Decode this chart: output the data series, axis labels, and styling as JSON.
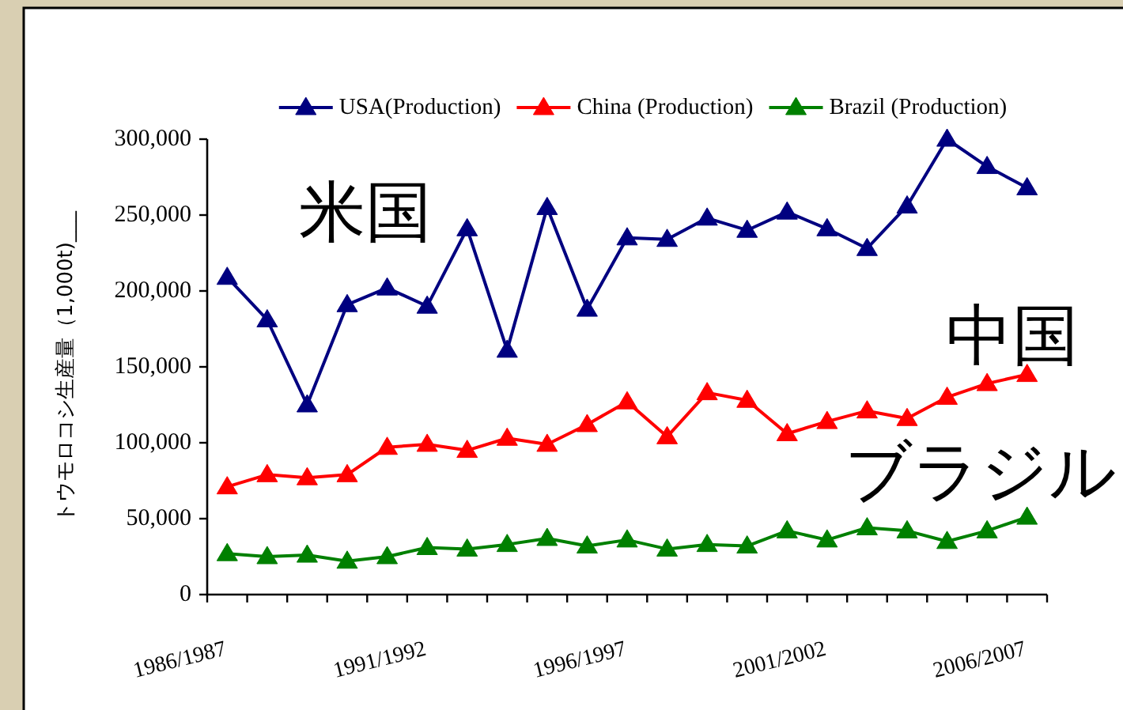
{
  "chart_data": {
    "type": "line",
    "ylabel": "トウモロコシ生産量（1,000t)___",
    "categories": [
      "1986/1987",
      null,
      null,
      null,
      null,
      "1991/1992",
      null,
      null,
      null,
      null,
      "1996/1997",
      null,
      null,
      null,
      null,
      "2001/2002",
      null,
      null,
      null,
      null,
      "2006/2007"
    ],
    "series": [
      {
        "name": "USA(Production)",
        "color": "#000080",
        "values": [
          209000,
          181000,
          125000,
          191000,
          202000,
          190000,
          241000,
          161000,
          255000,
          188000,
          235000,
          234000,
          248000,
          240000,
          252000,
          241000,
          228000,
          256000,
          300000,
          282000,
          268000
        ]
      },
      {
        "name": "China (Production)",
        "color": "#ff0000",
        "values": [
          71000,
          79000,
          77000,
          79000,
          97000,
          99000,
          95000,
          103000,
          99000,
          112000,
          127000,
          104000,
          133000,
          128000,
          106000,
          114000,
          121000,
          116000,
          130000,
          139000,
          145000
        ]
      },
      {
        "name": "Brazil (Production)",
        "color": "#008000",
        "values": [
          27000,
          25000,
          26000,
          22000,
          25000,
          31000,
          30000,
          33000,
          37000,
          32000,
          36000,
          30000,
          33000,
          32000,
          42000,
          36000,
          44000,
          42000,
          35000,
          42000,
          51000
        ]
      }
    ],
    "ylim": [
      0,
      300000
    ],
    "yticks": [
      0,
      {
        "value": 50000,
        "label": "50,000"
      },
      {
        "value": 100000,
        "label": "100,000"
      },
      {
        "value": 150000,
        "label": "150,000"
      },
      {
        "value": 200000,
        "label": "200,000"
      },
      {
        "value": 250000,
        "label": "250,000"
      },
      {
        "value": 300000,
        "label": "300,000"
      }
    ],
    "legend": "top",
    "marker": "triangle",
    "line_style": "solid",
    "annotations": [
      "米国",
      "中国",
      "ブラジル"
    ]
  }
}
